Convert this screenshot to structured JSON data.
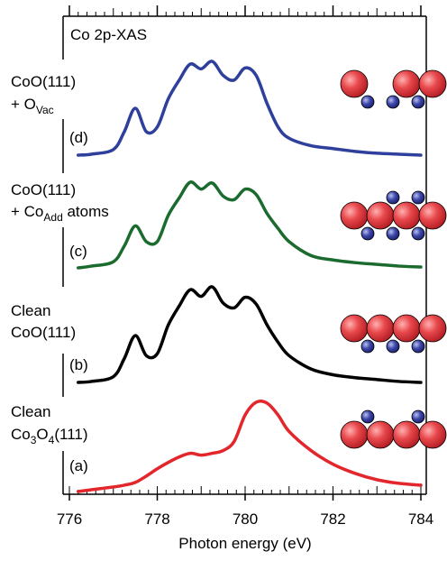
{
  "chart_data": {
    "type": "line",
    "title": "Co 2p-XAS",
    "x_label": "Photon energy (eV)",
    "xlim": [
      776,
      784
    ],
    "xticks": [
      776,
      778,
      780,
      782,
      784
    ],
    "x": [
      776.2,
      776.5,
      777,
      777.25,
      777.5,
      777.75,
      778,
      778.25,
      778.5,
      778.75,
      779,
      779.25,
      779.5,
      779.75,
      780,
      780.25,
      780.5,
      780.75,
      781,
      781.5,
      782,
      782.5,
      783,
      783.5,
      784
    ],
    "series": [
      {
        "name": "(a)",
        "color": "#e3262b",
        "label_lines": [
          [
            "Clean"
          ],
          [
            "Co",
            "3",
            "O",
            "4",
            "(111)"
          ]
        ],
        "values": [
          0,
          0.02,
          0.05,
          0.07,
          0.1,
          0.17,
          0.25,
          0.32,
          0.38,
          0.42,
          0.4,
          0.42,
          0.45,
          0.55,
          0.84,
          0.98,
          0.97,
          0.84,
          0.66,
          0.45,
          0.3,
          0.2,
          0.13,
          0.09,
          0.07
        ]
      },
      {
        "name": "(b)",
        "color": "#000000",
        "label_lines": [
          [
            "Clean"
          ],
          [
            "CoO(111)"
          ]
        ],
        "values": [
          0,
          0.01,
          0.06,
          0.25,
          0.49,
          0.28,
          0.3,
          0.6,
          0.8,
          0.97,
          0.9,
          1.0,
          0.83,
          0.78,
          0.89,
          0.82,
          0.6,
          0.42,
          0.28,
          0.14,
          0.08,
          0.05,
          0.03,
          0.01,
          0
        ]
      },
      {
        "name": "(c)",
        "color": "#1b6b2f",
        "label_lines": [
          [
            "CoO(111)"
          ],
          [
            "+ Co",
            "Add",
            " atoms"
          ]
        ],
        "values": [
          0,
          0.02,
          0.07,
          0.25,
          0.48,
          0.3,
          0.3,
          0.6,
          0.8,
          0.98,
          0.9,
          0.97,
          0.82,
          0.78,
          0.9,
          0.84,
          0.62,
          0.45,
          0.3,
          0.14,
          0.09,
          0.06,
          0.04,
          0.02,
          0.01
        ]
      },
      {
        "name": "(d)",
        "color": "#2e3f9c",
        "label_lines": [
          [
            "CoO(111)"
          ],
          [
            "+ O",
            "Vac"
          ]
        ],
        "values": [
          0,
          0.01,
          0.06,
          0.25,
          0.5,
          0.25,
          0.3,
          0.6,
          0.8,
          0.97,
          0.92,
          1.0,
          0.85,
          0.8,
          0.93,
          0.85,
          0.55,
          0.3,
          0.18,
          0.1,
          0.07,
          0.04,
          0.02,
          0.01,
          0
        ]
      }
    ]
  }
}
